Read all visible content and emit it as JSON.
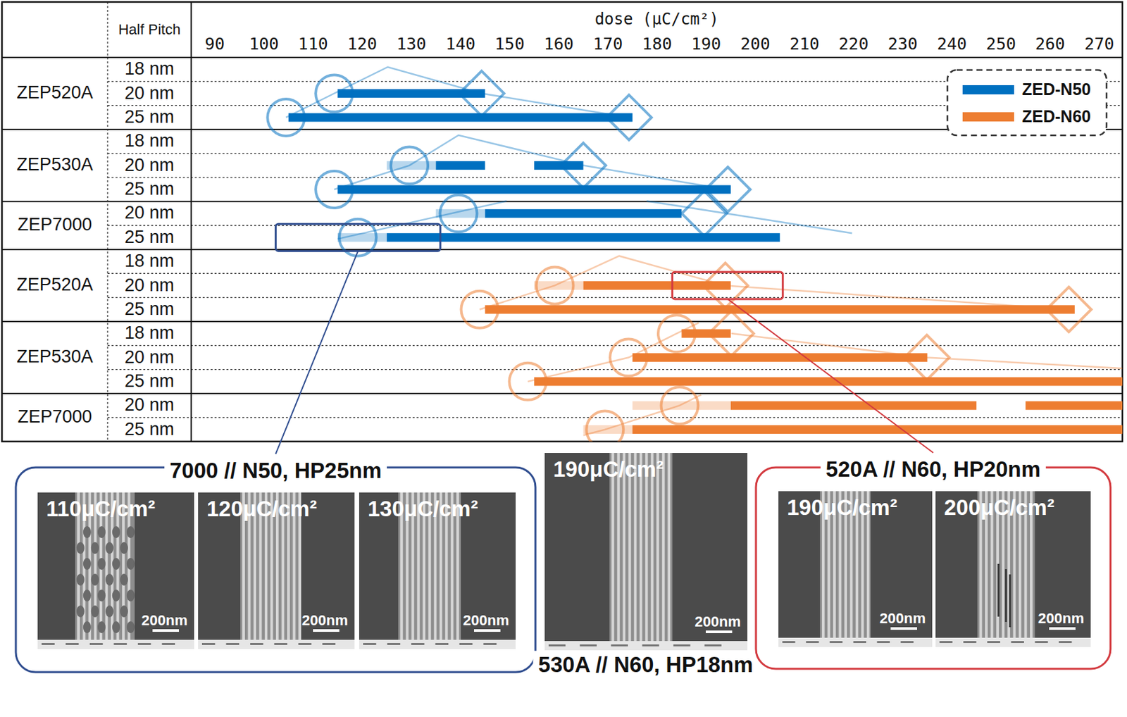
{
  "chart_data": {
    "type": "range_bar",
    "orientation": "horizontal",
    "x_label": "dose (μC/cm²)",
    "row_header": "Half Pitch",
    "xlim": [
      85.2,
      274.7
    ],
    "xticks": [
      90,
      100,
      110,
      120,
      130,
      140,
      150,
      160,
      170,
      180,
      190,
      200,
      210,
      220,
      230,
      240,
      250,
      260,
      270
    ],
    "series": [
      {
        "name": "ZED-N50",
        "color": "#0070c0"
      },
      {
        "name": "ZED-N60",
        "color": "#ed7d31"
      }
    ],
    "legend": "upper right",
    "groups": [
      {
        "resist": "ZEP520A",
        "developer": "ZED-N50",
        "rows": [
          {
            "half_pitch": "18 nm",
            "ranges": [],
            "faint_ranges": [],
            "circle": null,
            "diamond": null
          },
          {
            "half_pitch": "20 nm",
            "ranges": [
              [
                115,
                145
              ]
            ],
            "faint_ranges": [],
            "circle": 114.3,
            "diamond": 144.3
          },
          {
            "half_pitch": "25 nm",
            "ranges": [
              [
                105,
                175
              ]
            ],
            "faint_ranges": [],
            "circle": 104.5,
            "diamond": 174.3
          }
        ],
        "trend_lines": [
          [
            [
              104.5,
              2
            ],
            [
              114.3,
              1
            ],
            [
              125.2,
              -0.1
            ],
            [
              144.3,
              1
            ],
            [
              174.3,
              2
            ]
          ]
        ]
      },
      {
        "resist": "ZEP530A",
        "developer": "ZED-N50",
        "rows": [
          {
            "half_pitch": "18 nm",
            "ranges": [],
            "faint_ranges": [],
            "circle": null,
            "diamond": null
          },
          {
            "half_pitch": "20 nm",
            "ranges": [
              [
                135,
                145
              ],
              [
                155,
                165
              ]
            ],
            "faint_ranges": [
              [
                125,
                135
              ]
            ],
            "circle": 129.6,
            "diamond": 165
          },
          {
            "half_pitch": "25 nm",
            "ranges": [
              [
                115,
                195
              ]
            ],
            "faint_ranges": [],
            "circle": 114.3,
            "diamond": 194.4
          }
        ],
        "trend_lines": [
          [
            [
              114.3,
              2
            ],
            [
              129.6,
              1
            ],
            [
              139.6,
              -0.26
            ],
            [
              165,
              1
            ],
            [
              194.4,
              2
            ]
          ]
        ]
      },
      {
        "resist": "ZEP7000",
        "developer": "ZED-N50",
        "rows": [
          {
            "half_pitch": "20 nm",
            "ranges": [
              [
                145,
                185
              ]
            ],
            "faint_ranges": [
              [
                135,
                145
              ]
            ],
            "circle": 139.6,
            "diamond": 189.6
          },
          {
            "half_pitch": "25 nm",
            "ranges": [
              [
                125,
                205
              ]
            ],
            "faint_ranges": [
              [
                115,
                125
              ]
            ],
            "circle": 119.1,
            "diamond": null,
            "highlight": {
              "range": [
                102.4,
                135.9
              ],
              "color": "#2f4d8f"
            }
          }
        ],
        "trend_lines": [
          [
            [
              115,
              1.06
            ],
            [
              149.4,
              -0.52
            ]
          ],
          [
            [
              177.9,
              -0.52
            ],
            [
              219.7,
              0.82
            ]
          ]
        ]
      },
      {
        "resist": "ZEP520A",
        "developer": "ZED-N60",
        "rows": [
          {
            "half_pitch": "18 nm",
            "ranges": [],
            "faint_ranges": [],
            "circle": null,
            "diamond": null
          },
          {
            "half_pitch": "20 nm",
            "ranges": [
              [
                165,
                195
              ]
            ],
            "faint_ranges": [
              [
                155,
                165
              ]
            ],
            "circle": 159.2,
            "diamond": 193.9,
            "highlight": {
              "range": [
                183.1,
                205.6
              ],
              "color": "#d33a3f"
            }
          },
          {
            "half_pitch": "25 nm",
            "ranges": [
              [
                145,
                265
              ]
            ],
            "faint_ranges": [],
            "circle": 143.9,
            "diamond": 263.8
          }
        ],
        "trend_lines": [
          [
            [
              143.9,
              2
            ],
            [
              159.2,
              1
            ],
            [
              172.3,
              -0.23
            ],
            [
              193.9,
              1
            ],
            [
              263.8,
              2
            ]
          ]
        ]
      },
      {
        "resist": "ZEP530A",
        "developer": "ZED-N60",
        "rows": [
          {
            "half_pitch": "18 nm",
            "ranges": [
              [
                185,
                195
              ]
            ],
            "faint_ranges": [],
            "circle": 184,
            "diamond": 195.1
          },
          {
            "half_pitch": "20 nm",
            "ranges": [
              [
                175,
                235
              ]
            ],
            "faint_ranges": [],
            "circle": 174.2,
            "diamond": 234.9
          },
          {
            "half_pitch": "25 nm",
            "ranges": [
              [
                155,
                275
              ]
            ],
            "faint_ranges": [],
            "circle": 153.7,
            "diamond": null
          }
        ],
        "trend_lines": [
          [
            [
              153.7,
              2
            ],
            [
              174.2,
              1
            ],
            [
              184,
              0
            ],
            [
              188.5,
              -0.45
            ]
          ],
          [
            [
              195.1,
              0
            ],
            [
              234.9,
              1
            ],
            [
              274.7,
              1.45
            ]
          ]
        ]
      },
      {
        "resist": "ZEP7000",
        "developer": "ZED-N60",
        "rows": [
          {
            "half_pitch": "20 nm",
            "ranges": [
              [
                195,
                245
              ],
              [
                255,
                275
              ]
            ],
            "faint_ranges": [
              [
                175,
                195
              ]
            ],
            "circle": 184.6,
            "diamond": null
          },
          {
            "half_pitch": "25 nm",
            "ranges": [
              [
                175,
                275
              ]
            ],
            "faint_ranges": [
              [
                165,
                175
              ]
            ],
            "circle": 169.4,
            "diamond": null
          }
        ],
        "trend_lines": [
          [
            [
              165,
              1.24
            ],
            [
              169.4,
              1
            ],
            [
              184.6,
              0
            ],
            [
              189,
              -0.45
            ]
          ]
        ]
      }
    ]
  },
  "sem_panels": [
    {
      "title": "7000 // N50, HP25nm",
      "color": "#2f4d8f",
      "images": [
        {
          "label": "110μC/cm²",
          "scale_bar": "200nm"
        },
        {
          "label": "120μC/cm²",
          "scale_bar": "200nm"
        },
        {
          "label": "130μC/cm²",
          "scale_bar": "200nm"
        }
      ]
    },
    {
      "title": "530A // N60, HP18nm",
      "images": [
        {
          "label": "190μC/cm²",
          "scale_bar": "200nm"
        }
      ]
    },
    {
      "title": "520A // N60, HP20nm",
      "color": "#d33a3f",
      "images": [
        {
          "label": "190μC/cm²",
          "scale_bar": "200nm"
        },
        {
          "label": "200μC/cm²",
          "scale_bar": "200nm"
        }
      ]
    }
  ]
}
